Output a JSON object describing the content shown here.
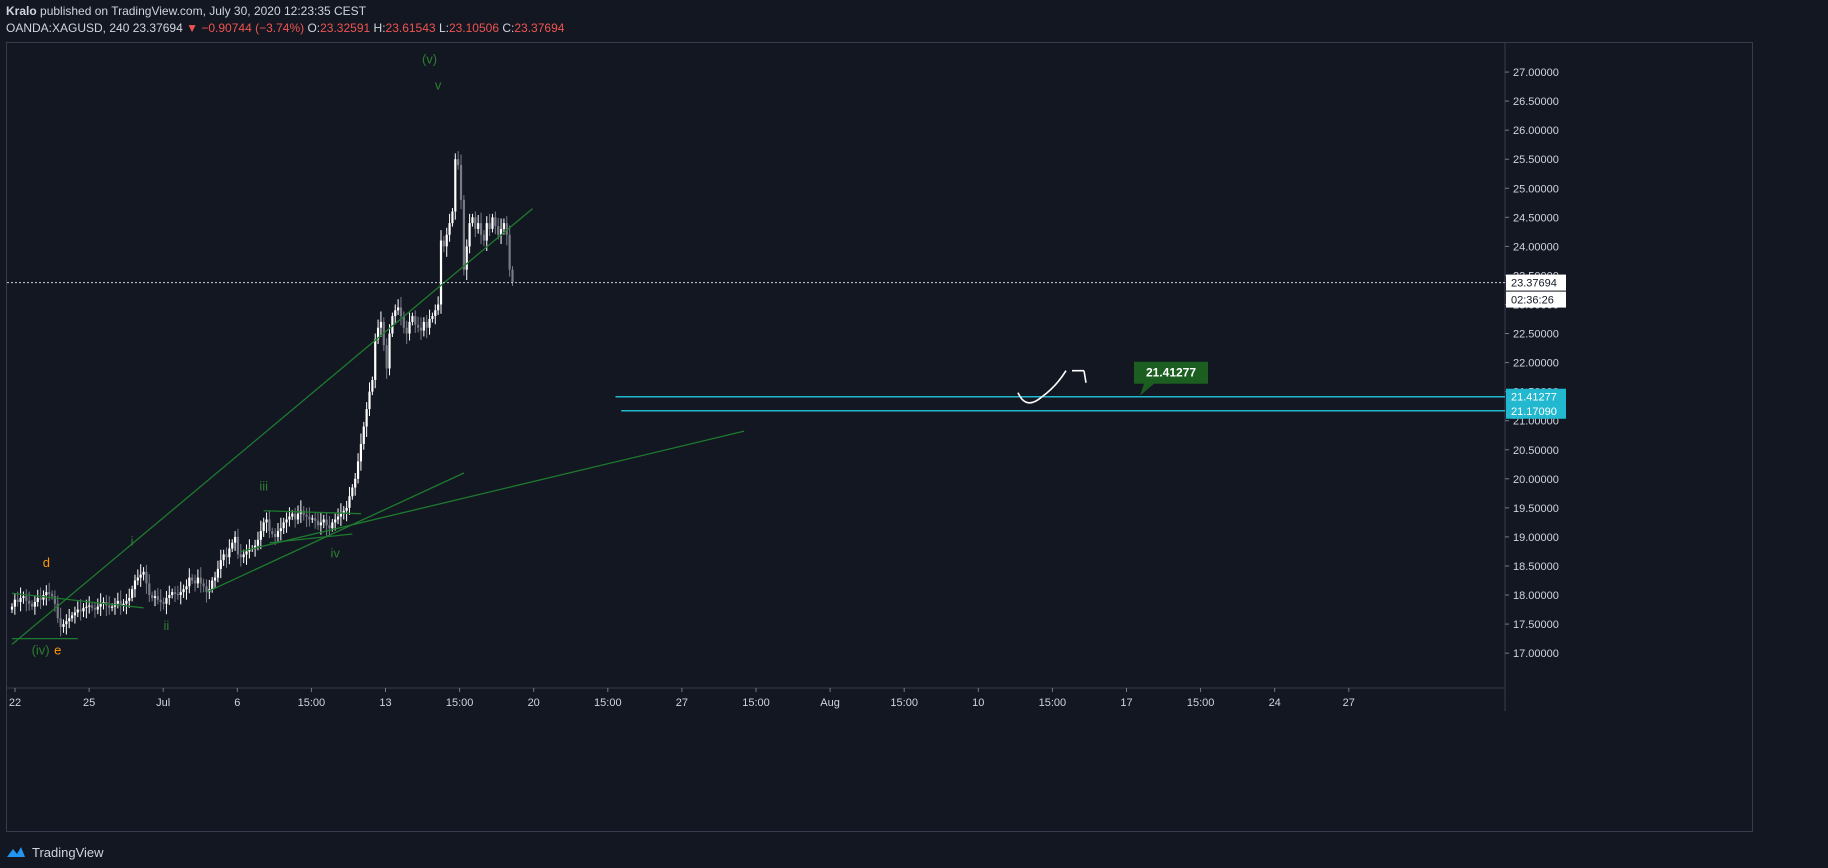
{
  "header": {
    "author": "Kralo",
    "published_text": "published on TradingView.com, July 30, 2020 12:23:35 CEST",
    "symbol": "OANDA:XAGUSD, 240",
    "last": "23.37694",
    "change": "−0.90744 (−3.74%)",
    "o_label": "O:",
    "o": "23.32591",
    "h_label": "H:",
    "h": "23.61543",
    "l_label": "L:",
    "l": "23.10506",
    "c_label": "C:",
    "c": "23.37694"
  },
  "footer": {
    "brand": "TradingView"
  },
  "colors": {
    "background": "#131722",
    "up_candle": "#ffffff",
    "down_candle": "#787b86",
    "trendline": "#1e7a2e",
    "level_line": "#22b8cf",
    "wave_label_green": "#2e7d32",
    "wave_label_orange": "#ff9800",
    "target_box": "#1b5e20",
    "negative": "#ef5350"
  },
  "chart_data": {
    "type": "candlestick",
    "x_tick_labels": [
      "22",
      "25",
      "Jul",
      "6",
      "15:00",
      "13",
      "15:00",
      "20",
      "15:00",
      "27",
      "15:00",
      "Aug",
      "15:00",
      "10",
      "15:00",
      "17",
      "15:00",
      "24",
      "27"
    ],
    "y_tick_labels": [
      "17.00000",
      "17.50000",
      "18.00000",
      "18.50000",
      "19.00000",
      "19.50000",
      "20.00000",
      "20.50000",
      "21.00000",
      "21.50000",
      "22.00000",
      "22.50000",
      "23.00000",
      "23.50000",
      "24.00000",
      "24.50000",
      "25.00000",
      "25.50000",
      "26.00000",
      "26.50000",
      "27.00000"
    ],
    "ylim": [
      16.4,
      27.5
    ],
    "bars_per_day": 6,
    "first_day": "2020-06-22",
    "candles_close": [
      17.8,
      17.92,
      17.88,
      17.95,
      17.98,
      17.9,
      17.85,
      17.8,
      17.88,
      17.95,
      17.92,
      18.0,
      18.05,
      18.02,
      17.98,
      17.85,
      17.6,
      17.45,
      17.5,
      17.55,
      17.6,
      17.65,
      17.7,
      17.75,
      17.72,
      17.78,
      17.8,
      17.82,
      17.78,
      17.75,
      17.8,
      17.85,
      17.88,
      17.82,
      17.78,
      17.8,
      17.85,
      17.9,
      17.82,
      17.85,
      17.9,
      17.95,
      18.1,
      18.25,
      18.3,
      18.35,
      18.4,
      18.2,
      18.0,
      17.95,
      17.98,
      17.92,
      17.88,
      17.85,
      17.95,
      18.0,
      18.05,
      18.02,
      18.0,
      18.05,
      18.1,
      18.15,
      18.3,
      18.25,
      18.2,
      18.3,
      18.2,
      18.15,
      18.05,
      18.1,
      18.25,
      18.3,
      18.45,
      18.6,
      18.7,
      18.65,
      18.8,
      18.9,
      19.0,
      18.7,
      18.65,
      18.7,
      18.75,
      18.8,
      18.8,
      18.85,
      18.95,
      19.1,
      19.25,
      19.3,
      19.1,
      19.05,
      19.0,
      19.1,
      19.15,
      19.25,
      19.3,
      19.35,
      19.4,
      19.3,
      19.4,
      19.45,
      19.38,
      19.35,
      19.3,
      19.32,
      19.28,
      19.2,
      19.25,
      19.3,
      19.2,
      19.15,
      19.25,
      19.3,
      19.35,
      19.4,
      19.45,
      19.5,
      19.7,
      19.85,
      20.0,
      20.3,
      20.6,
      20.9,
      21.2,
      21.5,
      21.7,
      22.4,
      22.6,
      22.7,
      22.3,
      21.9,
      22.5,
      22.8,
      22.9,
      22.95,
      22.8,
      22.6,
      22.5,
      22.7,
      22.8,
      22.65,
      22.6,
      22.55,
      22.7,
      22.6,
      22.75,
      22.8,
      22.9,
      23.0,
      24.1,
      24.0,
      24.2,
      24.4,
      24.6,
      25.5,
      25.4,
      24.8,
      23.6,
      24.0,
      24.4,
      24.5,
      24.3,
      24.4,
      24.2,
      24.1,
      24.4,
      24.3,
      24.5,
      24.35,
      24.2,
      24.3,
      24.4,
      24.2,
      23.6,
      23.38
    ],
    "levels": [
      {
        "value": 21.41277,
        "label": "21.41277"
      },
      {
        "value": 21.1709,
        "label": "21.17090"
      }
    ],
    "last_price": {
      "value": 23.37694,
      "label": "23.37694",
      "countdown": "02:36:26"
    },
    "target_label": "21.41277",
    "wave_labels": [
      {
        "text": "d",
        "color": "orange",
        "bar": 12,
        "price": 18.48
      },
      {
        "text": "(iv)",
        "color": "green",
        "bar": 10,
        "price": 16.98
      },
      {
        "text": "e",
        "color": "orange",
        "bar": 16,
        "price": 16.98
      },
      {
        "text": "i",
        "color": "green",
        "bar": 42,
        "price": 18.85
      },
      {
        "text": "ii",
        "color": "green",
        "bar": 54,
        "price": 17.4
      },
      {
        "text": "iii",
        "color": "green",
        "bar": 88,
        "price": 19.8
      },
      {
        "text": "iv",
        "color": "green",
        "bar": 113,
        "price": 18.65
      },
      {
        "text": "(v)",
        "color": "green",
        "bar": 146,
        "price": 27.15
      },
      {
        "text": "v",
        "color": "green",
        "bar": 149,
        "price": 26.7
      }
    ],
    "trendlines": [
      {
        "from": {
          "bar": 0,
          "price": 17.15
        },
        "to": {
          "bar": 182,
          "price": 24.65
        }
      },
      {
        "from": {
          "bar": 0,
          "price": 18.03
        },
        "to": {
          "bar": 46,
          "price": 17.78
        }
      },
      {
        "from": {
          "bar": 0,
          "price": 17.25
        },
        "to": {
          "bar": 23,
          "price": 17.25
        }
      },
      {
        "from": {
          "bar": 68,
          "price": 18.05
        },
        "to": {
          "bar": 158,
          "price": 20.1
        }
      },
      {
        "from": {
          "bar": 80,
          "price": 18.75
        },
        "to": {
          "bar": 256,
          "price": 20.82
        }
      },
      {
        "from": {
          "bar": 88,
          "price": 19.45
        },
        "to": {
          "bar": 122,
          "price": 19.4
        }
      },
      {
        "from": {
          "bar": 90,
          "price": 18.9
        },
        "to": {
          "bar": 119,
          "price": 19.05
        }
      }
    ]
  }
}
